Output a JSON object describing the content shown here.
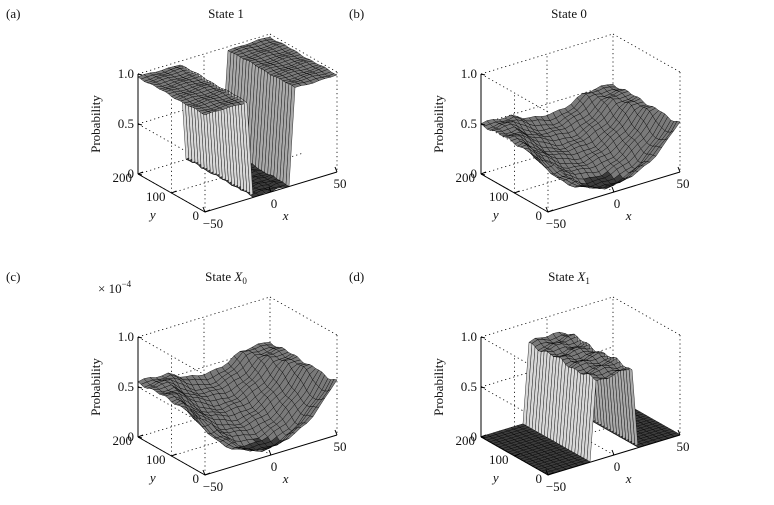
{
  "chart_data": [
    {
      "type": "surface",
      "panel": "(a)",
      "title": "State 1",
      "title_sub": "",
      "zlabel": "Probability",
      "xlabel": "x",
      "ylabel": "y",
      "x_ticks": [
        "−50",
        "0",
        "50"
      ],
      "y_ticks": [
        "0",
        "100",
        "200"
      ],
      "z_ticks": [
        "0",
        "0.5",
        "1.0"
      ],
      "xlim": [
        -50,
        50
      ],
      "ylim": [
        0,
        200
      ],
      "zlim": [
        0,
        1
      ],
      "scale_note": "",
      "shape": "plateau-with-well",
      "plateau_level": 0.97,
      "well_x_range": [
        -15,
        15
      ],
      "well_y_range": [
        0,
        200
      ],
      "well_level": 0.0
    },
    {
      "type": "surface",
      "panel": "(b)",
      "title": "State 0",
      "title_sub": "",
      "zlabel": "Probability",
      "xlabel": "x",
      "ylabel": "y",
      "x_ticks": [
        "−50",
        "0",
        "50"
      ],
      "y_ticks": [
        "0",
        "100",
        "200"
      ],
      "z_ticks": [
        "0",
        "0.5",
        "1.0"
      ],
      "xlim": [
        -50,
        50
      ],
      "ylim": [
        0,
        200
      ],
      "zlim": [
        0,
        1
      ],
      "scale_note": "",
      "shape": "bowl",
      "bowl_min": 0.0,
      "bowl_max": 0.5
    },
    {
      "type": "surface",
      "panel": "(c)",
      "title": "State X",
      "title_sub": "0",
      "zlabel": "Probability",
      "xlabel": "x",
      "ylabel": "y",
      "x_ticks": [
        "−50",
        "0",
        "50"
      ],
      "y_ticks": [
        "0",
        "100",
        "200"
      ],
      "z_ticks": [
        "0",
        "0.5",
        "1.0"
      ],
      "xlim": [
        -50,
        50
      ],
      "ylim": [
        0,
        200
      ],
      "zlim": [
        0,
        1
      ],
      "scale_note": "× 10",
      "scale_exp": "−4",
      "shape": "bowl",
      "bowl_min": 0.0,
      "bowl_max": 0.55
    },
    {
      "type": "surface",
      "panel": "(d)",
      "title": "State X",
      "title_sub": "1",
      "zlabel": "Probability",
      "xlabel": "x",
      "ylabel": "y",
      "x_ticks": [
        "−50",
        "0",
        "50"
      ],
      "y_ticks": [
        "0",
        "100",
        "200"
      ],
      "z_ticks": [
        "0",
        "0.5",
        "1.0"
      ],
      "xlim": [
        -50,
        50
      ],
      "ylim": [
        0,
        200
      ],
      "zlim": [
        0,
        1
      ],
      "scale_note": "",
      "shape": "flat-with-ridge",
      "ridge_x_range": [
        -15,
        15
      ],
      "ridge_y_range": [
        0,
        200
      ],
      "ridge_level": 0.8
    }
  ],
  "colors": {
    "surface_fill": "#7a7a7a",
    "surface_dark": "#3c3c3c",
    "surface_light": "#d8d8d8",
    "mesh": "#000000",
    "frame": "#000000",
    "background": "#ffffff"
  }
}
